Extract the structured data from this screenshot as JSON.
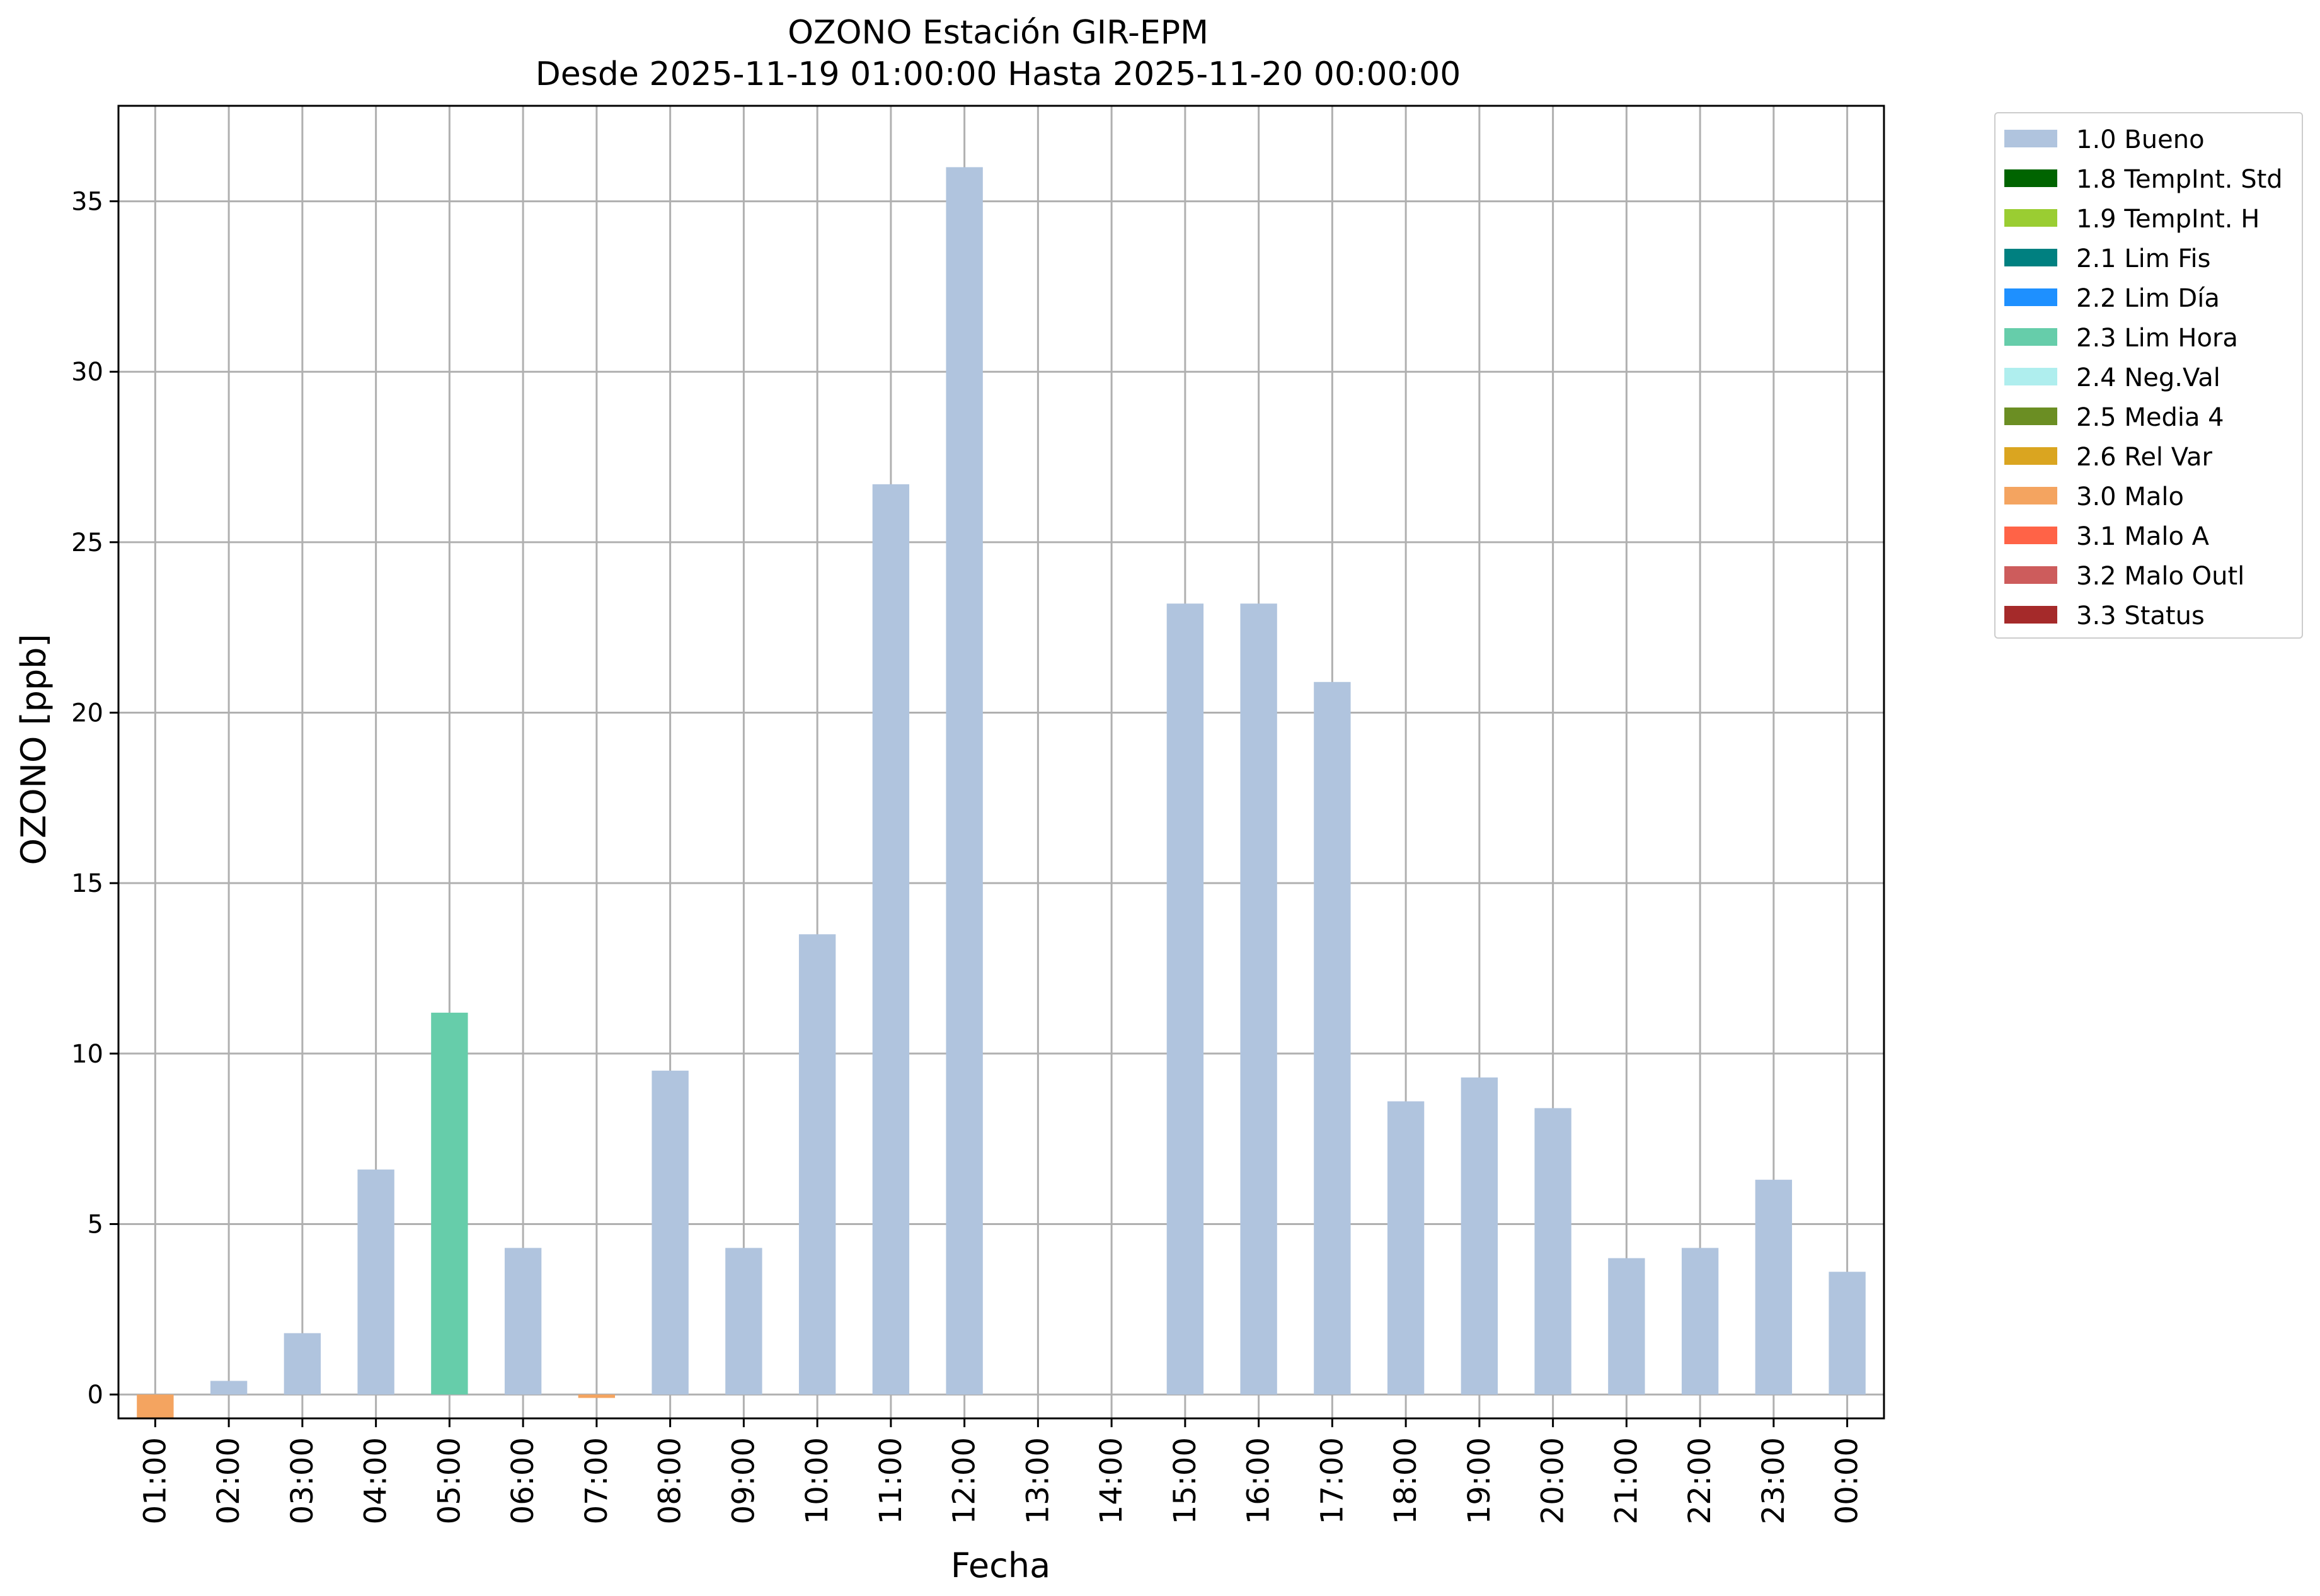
{
  "chart_data": {
    "type": "bar",
    "title": "OZONO Estación GIR-EPM",
    "subtitle": "Desde 2025-11-19 01:00:00 Hasta 2025-11-20 00:00:00",
    "xlabel": "Fecha",
    "ylabel": "OZONO [ppb]",
    "ylim": [
      -0.7,
      37.8
    ],
    "yticks": [
      0,
      5,
      10,
      15,
      20,
      25,
      30,
      35
    ],
    "grid": true,
    "legend_position": "outside-right",
    "categories": [
      "01:00",
      "02:00",
      "03:00",
      "04:00",
      "05:00",
      "06:00",
      "07:00",
      "08:00",
      "09:00",
      "10:00",
      "11:00",
      "12:00",
      "13:00",
      "14:00",
      "15:00",
      "16:00",
      "17:00",
      "18:00",
      "19:00",
      "20:00",
      "21:00",
      "22:00",
      "23:00",
      "00:00"
    ],
    "values": [
      -0.7,
      0.4,
      1.8,
      6.6,
      11.2,
      4.3,
      -0.1,
      9.5,
      4.3,
      13.5,
      26.7,
      36.0,
      null,
      null,
      23.2,
      23.2,
      20.9,
      8.6,
      9.3,
      8.4,
      4.0,
      4.3,
      6.3,
      3.6
    ],
    "flags": [
      "3.0 Malo",
      "1.0 Bueno",
      "1.0 Bueno",
      "1.0 Bueno",
      "2.3 Lim Hora",
      "1.0 Bueno",
      "3.0 Malo",
      "1.0 Bueno",
      "1.0 Bueno",
      "1.0 Bueno",
      "1.0 Bueno",
      "1.0 Bueno",
      null,
      null,
      "1.0 Bueno",
      "1.0 Bueno",
      "1.0 Bueno",
      "1.0 Bueno",
      "1.0 Bueno",
      "1.0 Bueno",
      "1.0 Bueno",
      "1.0 Bueno",
      "1.0 Bueno",
      "1.0 Bueno"
    ],
    "legend": [
      {
        "label": "1.0 Bueno",
        "color": "#b0c4de"
      },
      {
        "label": "1.8 TempInt. Std",
        "color": "#006400"
      },
      {
        "label": "1.9 TempInt. H",
        "color": "#9acd32"
      },
      {
        "label": "2.1 Lim Fis",
        "color": "#008080"
      },
      {
        "label": "2.2 Lim Día",
        "color": "#1e90ff"
      },
      {
        "label": "2.3 Lim Hora",
        "color": "#66cdaa"
      },
      {
        "label": "2.4 Neg.Val",
        "color": "#afeeee"
      },
      {
        "label": "2.5 Media 4",
        "color": "#6b8e23"
      },
      {
        "label": "2.6 Rel Var",
        "color": "#daa520"
      },
      {
        "label": "3.0 Malo",
        "color": "#f4a460"
      },
      {
        "label": "3.1 Malo A",
        "color": "#ff6347"
      },
      {
        "label": "3.2 Malo Outl",
        "color": "#cd5c5c"
      },
      {
        "label": "3.3 Status",
        "color": "#a52a2a"
      }
    ]
  }
}
